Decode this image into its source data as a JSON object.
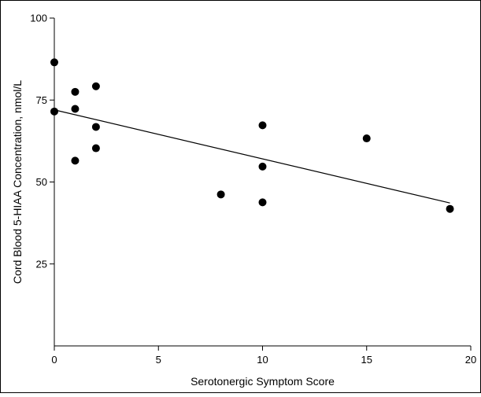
{
  "chart_data": {
    "type": "scatter",
    "xlabel": "Serotonergic Symptom Score",
    "ylabel": "Cord Blood 5-HIAA Concentration, nmol/L",
    "xlim": [
      0,
      20
    ],
    "ylim": [
      0,
      100
    ],
    "x_ticks": [
      0,
      5,
      10,
      15,
      20
    ],
    "y_ticks": [
      25,
      50,
      75,
      100
    ],
    "x_tick_labels": [
      "0",
      "5",
      "10",
      "15",
      "20"
    ],
    "y_tick_labels": [
      "25",
      "50",
      "75",
      "100"
    ],
    "grid": false,
    "legend": "none",
    "marker_color": "#000000",
    "points": [
      {
        "x": 0,
        "y": 86.5
      },
      {
        "x": 0,
        "y": 71.5
      },
      {
        "x": 1,
        "y": 77.5
      },
      {
        "x": 1,
        "y": 72.3
      },
      {
        "x": 1,
        "y": 56.5
      },
      {
        "x": 2,
        "y": 79.2
      },
      {
        "x": 2,
        "y": 66.8
      },
      {
        "x": 2,
        "y": 60.3
      },
      {
        "x": 8,
        "y": 46.2
      },
      {
        "x": 10,
        "y": 67.3
      },
      {
        "x": 10,
        "y": 54.7
      },
      {
        "x": 10,
        "y": 43.8
      },
      {
        "x": 15,
        "y": 63.3
      },
      {
        "x": 19,
        "y": 41.8
      }
    ],
    "trendline": {
      "x": [
        0,
        19
      ],
      "y": [
        72,
        43.6
      ]
    }
  }
}
